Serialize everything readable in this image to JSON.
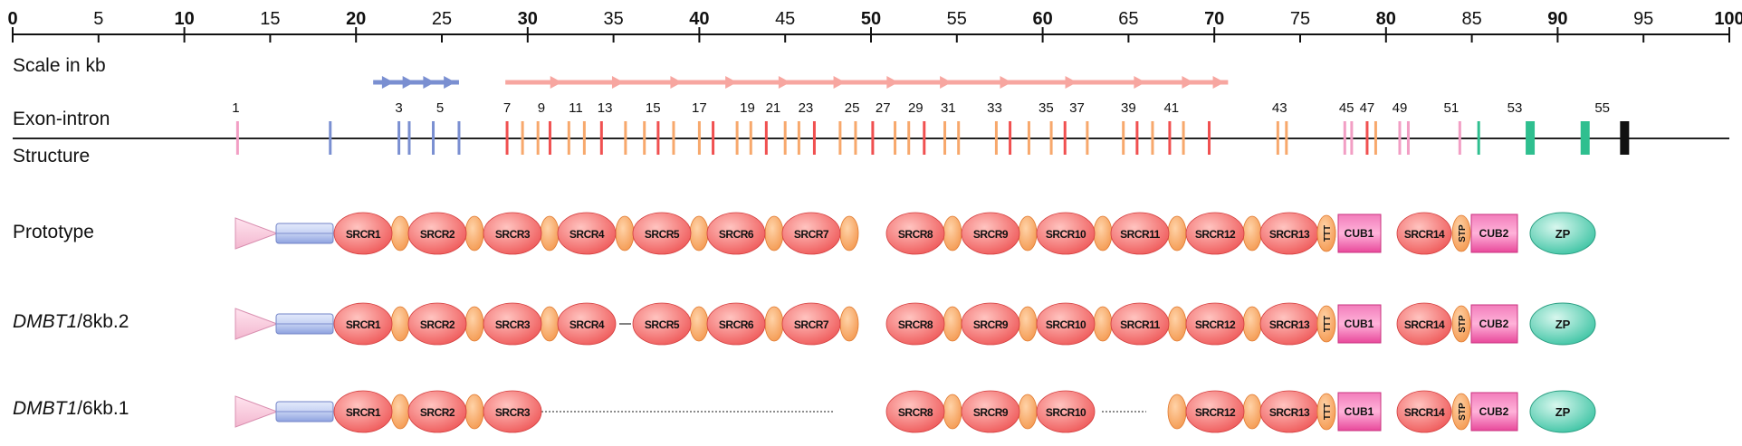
{
  "scale": {
    "label": "Scale in kb",
    "min": 0,
    "max": 100,
    "major_ticks": [
      0,
      10,
      20,
      30,
      40,
      50,
      60,
      70,
      80,
      90,
      100
    ],
    "minor_ticks": [
      5,
      15,
      25,
      35,
      45,
      55,
      65,
      75,
      85,
      95
    ]
  },
  "structure": {
    "label_line1": "Exon-intron",
    "label_line2": "Structure",
    "exon_numbers": [
      "1",
      "3",
      "5",
      "7",
      "9",
      "11",
      "13",
      "15",
      "17",
      "19",
      "21",
      "23",
      "25",
      "27",
      "29",
      "31",
      "33",
      "35",
      "37",
      "39",
      "41",
      "43",
      "45",
      "47",
      "49",
      "51",
      "53",
      "55"
    ],
    "exon_number_positions_kb": [
      13.0,
      22.5,
      24.9,
      28.8,
      30.8,
      32.8,
      34.5,
      37.3,
      40.0,
      42.8,
      44.3,
      46.2,
      48.9,
      50.7,
      52.6,
      54.5,
      57.2,
      60.2,
      62.0,
      65.0,
      67.5,
      73.8,
      77.7,
      78.9,
      80.8,
      83.8,
      87.5,
      92.6
    ],
    "colors": {
      "pink": "#f29ec4",
      "blue": "#7a8fd1",
      "red": "#f05050",
      "orange": "#f7a86c",
      "green": "#2fbf8f",
      "black": "#111111"
    },
    "exons": [
      {
        "kb": 13.1,
        "color": "pink"
      },
      {
        "kb": 18.5,
        "color": "blue"
      },
      {
        "kb": 22.5,
        "color": "blue"
      },
      {
        "kb": 23.1,
        "color": "blue"
      },
      {
        "kb": 24.5,
        "color": "blue"
      },
      {
        "kb": 26.0,
        "color": "blue"
      },
      {
        "kb": 28.8,
        "color": "red"
      },
      {
        "kb": 29.7,
        "color": "orange"
      },
      {
        "kb": 30.6,
        "color": "orange"
      },
      {
        "kb": 31.3,
        "color": "red"
      },
      {
        "kb": 32.4,
        "color": "orange"
      },
      {
        "kb": 33.3,
        "color": "orange"
      },
      {
        "kb": 34.3,
        "color": "red"
      },
      {
        "kb": 35.7,
        "color": "orange"
      },
      {
        "kb": 36.8,
        "color": "orange"
      },
      {
        "kb": 37.6,
        "color": "red"
      },
      {
        "kb": 38.5,
        "color": "orange"
      },
      {
        "kb": 40.0,
        "color": "orange"
      },
      {
        "kb": 40.8,
        "color": "red"
      },
      {
        "kb": 42.2,
        "color": "orange"
      },
      {
        "kb": 43.0,
        "color": "orange"
      },
      {
        "kb": 43.9,
        "color": "red"
      },
      {
        "kb": 45.0,
        "color": "orange"
      },
      {
        "kb": 45.8,
        "color": "orange"
      },
      {
        "kb": 46.7,
        "color": "red"
      },
      {
        "kb": 48.2,
        "color": "orange"
      },
      {
        "kb": 49.1,
        "color": "orange"
      },
      {
        "kb": 50.1,
        "color": "red"
      },
      {
        "kb": 51.4,
        "color": "orange"
      },
      {
        "kb": 52.2,
        "color": "orange"
      },
      {
        "kb": 53.1,
        "color": "red"
      },
      {
        "kb": 54.3,
        "color": "orange"
      },
      {
        "kb": 55.1,
        "color": "orange"
      },
      {
        "kb": 57.3,
        "color": "orange"
      },
      {
        "kb": 58.1,
        "color": "red"
      },
      {
        "kb": 59.2,
        "color": "orange"
      },
      {
        "kb": 60.5,
        "color": "orange"
      },
      {
        "kb": 61.3,
        "color": "red"
      },
      {
        "kb": 62.6,
        "color": "orange"
      },
      {
        "kb": 64.7,
        "color": "orange"
      },
      {
        "kb": 65.5,
        "color": "red"
      },
      {
        "kb": 66.4,
        "color": "orange"
      },
      {
        "kb": 67.4,
        "color": "red"
      },
      {
        "kb": 68.2,
        "color": "orange"
      },
      {
        "kb": 69.7,
        "color": "red"
      },
      {
        "kb": 73.7,
        "color": "orange"
      },
      {
        "kb": 74.2,
        "color": "orange"
      },
      {
        "kb": 77.6,
        "color": "pink"
      },
      {
        "kb": 78.0,
        "color": "pink"
      },
      {
        "kb": 78.9,
        "color": "red"
      },
      {
        "kb": 79.4,
        "color": "orange"
      },
      {
        "kb": 80.8,
        "color": "pink"
      },
      {
        "kb": 81.3,
        "color": "pink"
      },
      {
        "kb": 84.3,
        "color": "pink"
      },
      {
        "kb": 85.4,
        "color": "green"
      },
      {
        "kb": 88.4,
        "color": "green",
        "wide": true
      },
      {
        "kb": 91.6,
        "color": "green",
        "wide": true
      },
      {
        "kb": 93.9,
        "color": "black",
        "wide": true
      }
    ]
  },
  "arrows": {
    "blue": {
      "from_kb": 21.0,
      "to_kb": 26.0,
      "heads_kb": [
        22.2,
        23.4,
        24.6,
        25.8
      ],
      "color": "#7a8fd1"
    },
    "red": {
      "from_kb": 28.7,
      "to_kb": 70.8,
      "heads_kb": [
        32.0,
        35.6,
        39.0,
        42.2,
        45.3,
        48.5,
        51.6,
        54.7,
        58.2,
        62.0,
        66.0,
        68.8,
        70.6
      ],
      "color": "#f7a6a0"
    }
  },
  "proteins": [
    {
      "label_italic": "",
      "label_rest": "Prototype",
      "variant": "prototype"
    },
    {
      "label_italic": "DMBT1",
      "label_rest": "/8kb.2",
      "variant": "8kb"
    },
    {
      "label_italic": "DMBT1",
      "label_rest": "/6kb.1",
      "variant": "6kb"
    }
  ],
  "domain_labels": {
    "srcr": [
      "SRCR1",
      "SRCR2",
      "SRCR3",
      "SRCR4",
      "SRCR5",
      "SRCR6",
      "SRCR7",
      "SRCR8",
      "SRCR9",
      "SRCR10",
      "SRCR11",
      "SRCR12",
      "SRCR13"
    ],
    "ttt": "TTT",
    "cub1": "CUB1",
    "srcr14": "SRCR14",
    "stp": "STP",
    "cub2": "CUB2",
    "zp": "ZP"
  },
  "domain_colors": {
    "srcr": "#ef5a5a",
    "sid": "#f49a52",
    "cub": "#e8489a",
    "zp": "#3ec4a4",
    "signal": "#f3b7cf",
    "linker": "#a9b8e8"
  }
}
